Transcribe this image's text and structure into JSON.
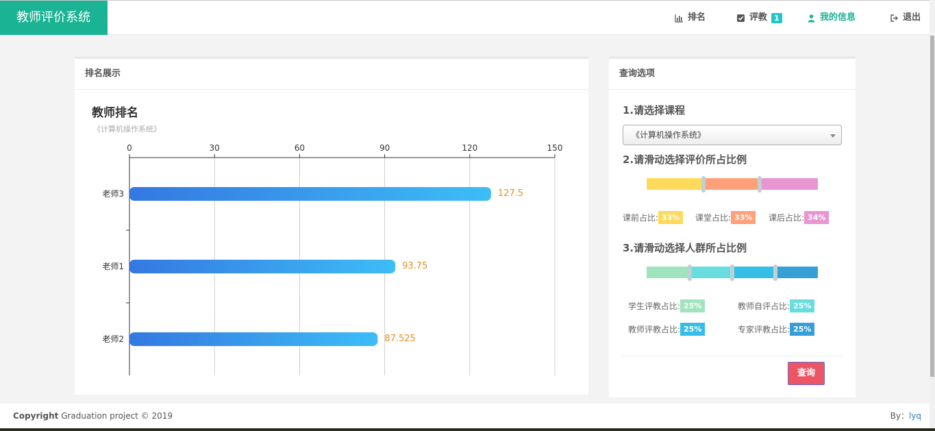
{
  "brand": "教师评价系统",
  "nav": {
    "ranking": "排名",
    "evaluate": "评教",
    "evaluate_badge": "1",
    "my_info": "我的信息",
    "logout": "退出"
  },
  "left_panel": {
    "heading": "排名展示"
  },
  "right_panel": {
    "heading": "查询选项",
    "step1": "1.请选择课程",
    "course_value": "《计算机操作系统》",
    "step2": "2.请滑动选择评价所占比例",
    "eval_ratio": [
      {
        "label": "课前占比:",
        "value": "33%",
        "fraction": 0.33,
        "color": "#ffd95a"
      },
      {
        "label": "课堂占比:",
        "value": "33%",
        "fraction": 0.33,
        "color": "#ffa07a"
      },
      {
        "label": "课后占比:",
        "value": "34%",
        "fraction": 0.34,
        "color": "#e896d1"
      }
    ],
    "step3": "3.请滑动选择人群所占比例",
    "crowd_ratio": [
      {
        "label": "学生评教占比:",
        "value": "25%",
        "fraction": 0.25,
        "color": "#a0e4bd"
      },
      {
        "label": "教师自评占比:",
        "value": "25%",
        "fraction": 0.25,
        "color": "#67dde0"
      },
      {
        "label": "教师评教占比:",
        "value": "25%",
        "fraction": 0.25,
        "color": "#35bfe6"
      },
      {
        "label": "专家评教占比:",
        "value": "25%",
        "fraction": 0.25,
        "color": "#369fd8"
      }
    ],
    "query_button": "查询"
  },
  "chart_data": {
    "type": "bar",
    "orientation": "horizontal",
    "title": "教师排名",
    "subtitle": "《计算机操作系统》",
    "categories": [
      "老师3",
      "老师1",
      "老师2"
    ],
    "values": [
      127.5,
      93.75,
      87.525
    ],
    "value_labels": [
      "127.5",
      "93.75",
      "87.525"
    ],
    "xlim": [
      0,
      150
    ],
    "xticks": [
      "0",
      "30",
      "60",
      "90",
      "120",
      "150"
    ],
    "grid": true,
    "colors": {
      "bar_start": "#3478e1",
      "bar_end": "#3dbdf6",
      "value_label": "#e88d1c"
    }
  },
  "footer": {
    "copyright_bold": "Copyright",
    "copyright_text": "Graduation project © 2019",
    "by_label": "By：",
    "by_name": "lyq"
  }
}
